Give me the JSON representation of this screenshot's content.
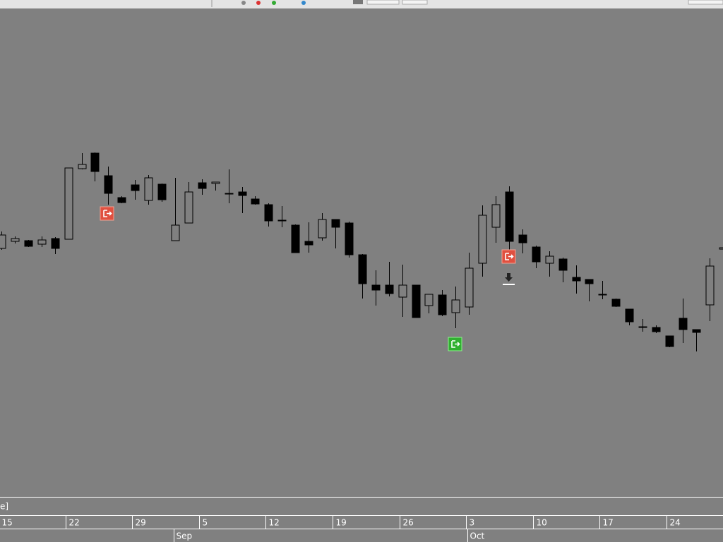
{
  "chart_data": {
    "type": "candlestick",
    "categories": [
      "15",
      null,
      null,
      null,
      null,
      "22",
      null,
      null,
      null,
      null,
      "29",
      null,
      null,
      null,
      null,
      "5",
      null,
      null,
      null,
      null,
      "12",
      null,
      null,
      null,
      null,
      "19",
      null,
      null,
      null,
      null,
      "26",
      null,
      null,
      null,
      null,
      "3",
      null,
      null,
      null,
      null,
      "10",
      null,
      null,
      null,
      null,
      "17",
      null,
      null,
      null,
      null,
      "24",
      null,
      null,
      null,
      null
    ],
    "months": [
      null,
      null,
      null,
      null,
      null,
      null,
      null,
      null,
      null,
      null,
      null,
      null,
      null,
      "Sep",
      null,
      null,
      null,
      null,
      null,
      null,
      null,
      null,
      null,
      null,
      null,
      null,
      null,
      null,
      null,
      null,
      null,
      null,
      null,
      null,
      null,
      "Oct",
      null,
      null,
      null,
      null,
      null,
      null,
      null,
      null,
      null,
      null,
      null,
      null,
      null,
      null,
      null,
      null,
      null,
      null,
      null
    ],
    "open": [
      348,
      358,
      359,
      354,
      362,
      361,
      461,
      483,
      451,
      420,
      438,
      416,
      439,
      359,
      384,
      441,
      440,
      426,
      428,
      418,
      410,
      388,
      381,
      358,
      363,
      389,
      384,
      339,
      296,
      296,
      279,
      296,
      267,
      282,
      257,
      265,
      327,
      378,
      428,
      367,
      350,
      327,
      333,
      307,
      304,
      283,
      276,
      262,
      237,
      236,
      224,
      249,
      233,
      268,
      347
    ],
    "high": [
      372,
      365,
      360,
      365,
      364,
      462,
      483,
      484,
      464,
      422,
      445,
      452,
      440,
      448,
      442,
      446,
      442,
      460,
      435,
      422,
      412,
      408,
      382,
      385,
      398,
      389,
      386,
      340,
      317,
      329,
      325,
      296,
      283,
      289,
      294,
      342,
      409,
      422,
      436,
      375,
      352,
      344,
      335,
      324,
      304,
      302,
      277,
      262,
      248,
      239,
      224,
      277,
      233,
      334,
      374
    ],
    "low": [
      346,
      355,
      350,
      350,
      340,
      361,
      460,
      443,
      410,
      412,
      417,
      410,
      414,
      359,
      384,
      424,
      430,
      412,
      398,
      410,
      379,
      378,
      342,
      342,
      359,
      348,
      335,
      277,
      267,
      280,
      251,
      250,
      256,
      252,
      235,
      254,
      308,
      356,
      345,
      341,
      320,
      308,
      300,
      284,
      273,
      276,
      265,
      239,
      230,
      228,
      208,
      214,
      202,
      245,
      320
    ],
    "close": [
      367,
      362,
      351,
      360,
      348,
      462,
      467,
      457,
      426,
      413,
      430,
      448,
      417,
      381,
      428,
      433,
      442,
      425,
      423,
      411,
      387,
      387,
      342,
      353,
      389,
      378,
      339,
      298,
      289,
      284,
      296,
      250,
      283,
      254,
      275,
      320,
      395,
      410,
      358,
      356,
      329,
      337,
      317,
      302,
      298,
      282,
      266,
      244,
      236,
      230,
      209,
      233,
      229,
      323,
      349
    ],
    "ylim": [
      0,
      688
    ],
    "up_color": "#808080",
    "down_color": "#000000",
    "wick_color": "#000000",
    "footer_text": "e]"
  }
}
